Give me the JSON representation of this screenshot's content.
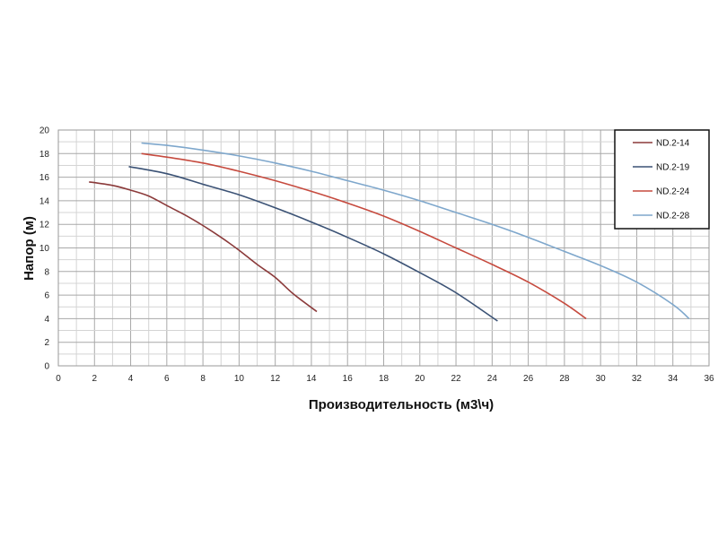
{
  "chart_data": {
    "type": "line",
    "xlabel": "Производительность (м3\\ч)",
    "ylabel": "Напор (м)",
    "xlim": [
      0,
      36
    ],
    "ylim": [
      0,
      20
    ],
    "x_ticks": [
      0,
      2,
      4,
      6,
      8,
      10,
      12,
      14,
      16,
      18,
      20,
      22,
      24,
      26,
      28,
      30,
      32,
      34,
      36
    ],
    "y_ticks": [
      0,
      2,
      4,
      6,
      8,
      10,
      12,
      14,
      16,
      18,
      20
    ],
    "grid": true,
    "legend_position": "top-right",
    "series": [
      {
        "name": "ND.2-14",
        "color": "#8b3a3a",
        "points": [
          [
            1.7,
            15.6
          ],
          [
            3.0,
            15.3
          ],
          [
            4.0,
            14.9
          ],
          [
            5.0,
            14.4
          ],
          [
            6.0,
            13.6
          ],
          [
            7.0,
            12.8
          ],
          [
            8.0,
            11.9
          ],
          [
            9.0,
            10.9
          ],
          [
            10.0,
            9.8
          ],
          [
            11.0,
            8.6
          ],
          [
            12.0,
            7.5
          ],
          [
            13.0,
            6.1
          ],
          [
            14.3,
            4.6
          ]
        ]
      },
      {
        "name": "ND.2-19",
        "color": "#3b5275",
        "points": [
          [
            3.9,
            16.9
          ],
          [
            6.0,
            16.3
          ],
          [
            8.0,
            15.4
          ],
          [
            10.0,
            14.5
          ],
          [
            12.0,
            13.4
          ],
          [
            14.0,
            12.2
          ],
          [
            16.0,
            10.9
          ],
          [
            18.0,
            9.5
          ],
          [
            20.0,
            7.9
          ],
          [
            22.0,
            6.2
          ],
          [
            24.3,
            3.8
          ]
        ]
      },
      {
        "name": "ND.2-24",
        "color": "#c64a3e",
        "points": [
          [
            4.6,
            18.0
          ],
          [
            6.0,
            17.7
          ],
          [
            8.0,
            17.2
          ],
          [
            10.0,
            16.5
          ],
          [
            12.0,
            15.7
          ],
          [
            14.0,
            14.8
          ],
          [
            16.0,
            13.8
          ],
          [
            18.0,
            12.7
          ],
          [
            20.0,
            11.4
          ],
          [
            22.0,
            10.0
          ],
          [
            24.0,
            8.6
          ],
          [
            26.0,
            7.1
          ],
          [
            28.0,
            5.3
          ],
          [
            29.2,
            4.0
          ]
        ]
      },
      {
        "name": "ND.2-28",
        "color": "#7ea7cc",
        "points": [
          [
            4.6,
            18.9
          ],
          [
            6.0,
            18.7
          ],
          [
            8.0,
            18.3
          ],
          [
            10.0,
            17.8
          ],
          [
            12.0,
            17.2
          ],
          [
            14.0,
            16.5
          ],
          [
            16.0,
            15.7
          ],
          [
            18.0,
            14.9
          ],
          [
            20.0,
            14.0
          ],
          [
            22.0,
            13.0
          ],
          [
            24.0,
            12.0
          ],
          [
            26.0,
            10.9
          ],
          [
            28.0,
            9.7
          ],
          [
            30.0,
            8.5
          ],
          [
            32.0,
            7.1
          ],
          [
            34.0,
            5.2
          ],
          [
            34.9,
            4.0
          ]
        ]
      }
    ]
  }
}
